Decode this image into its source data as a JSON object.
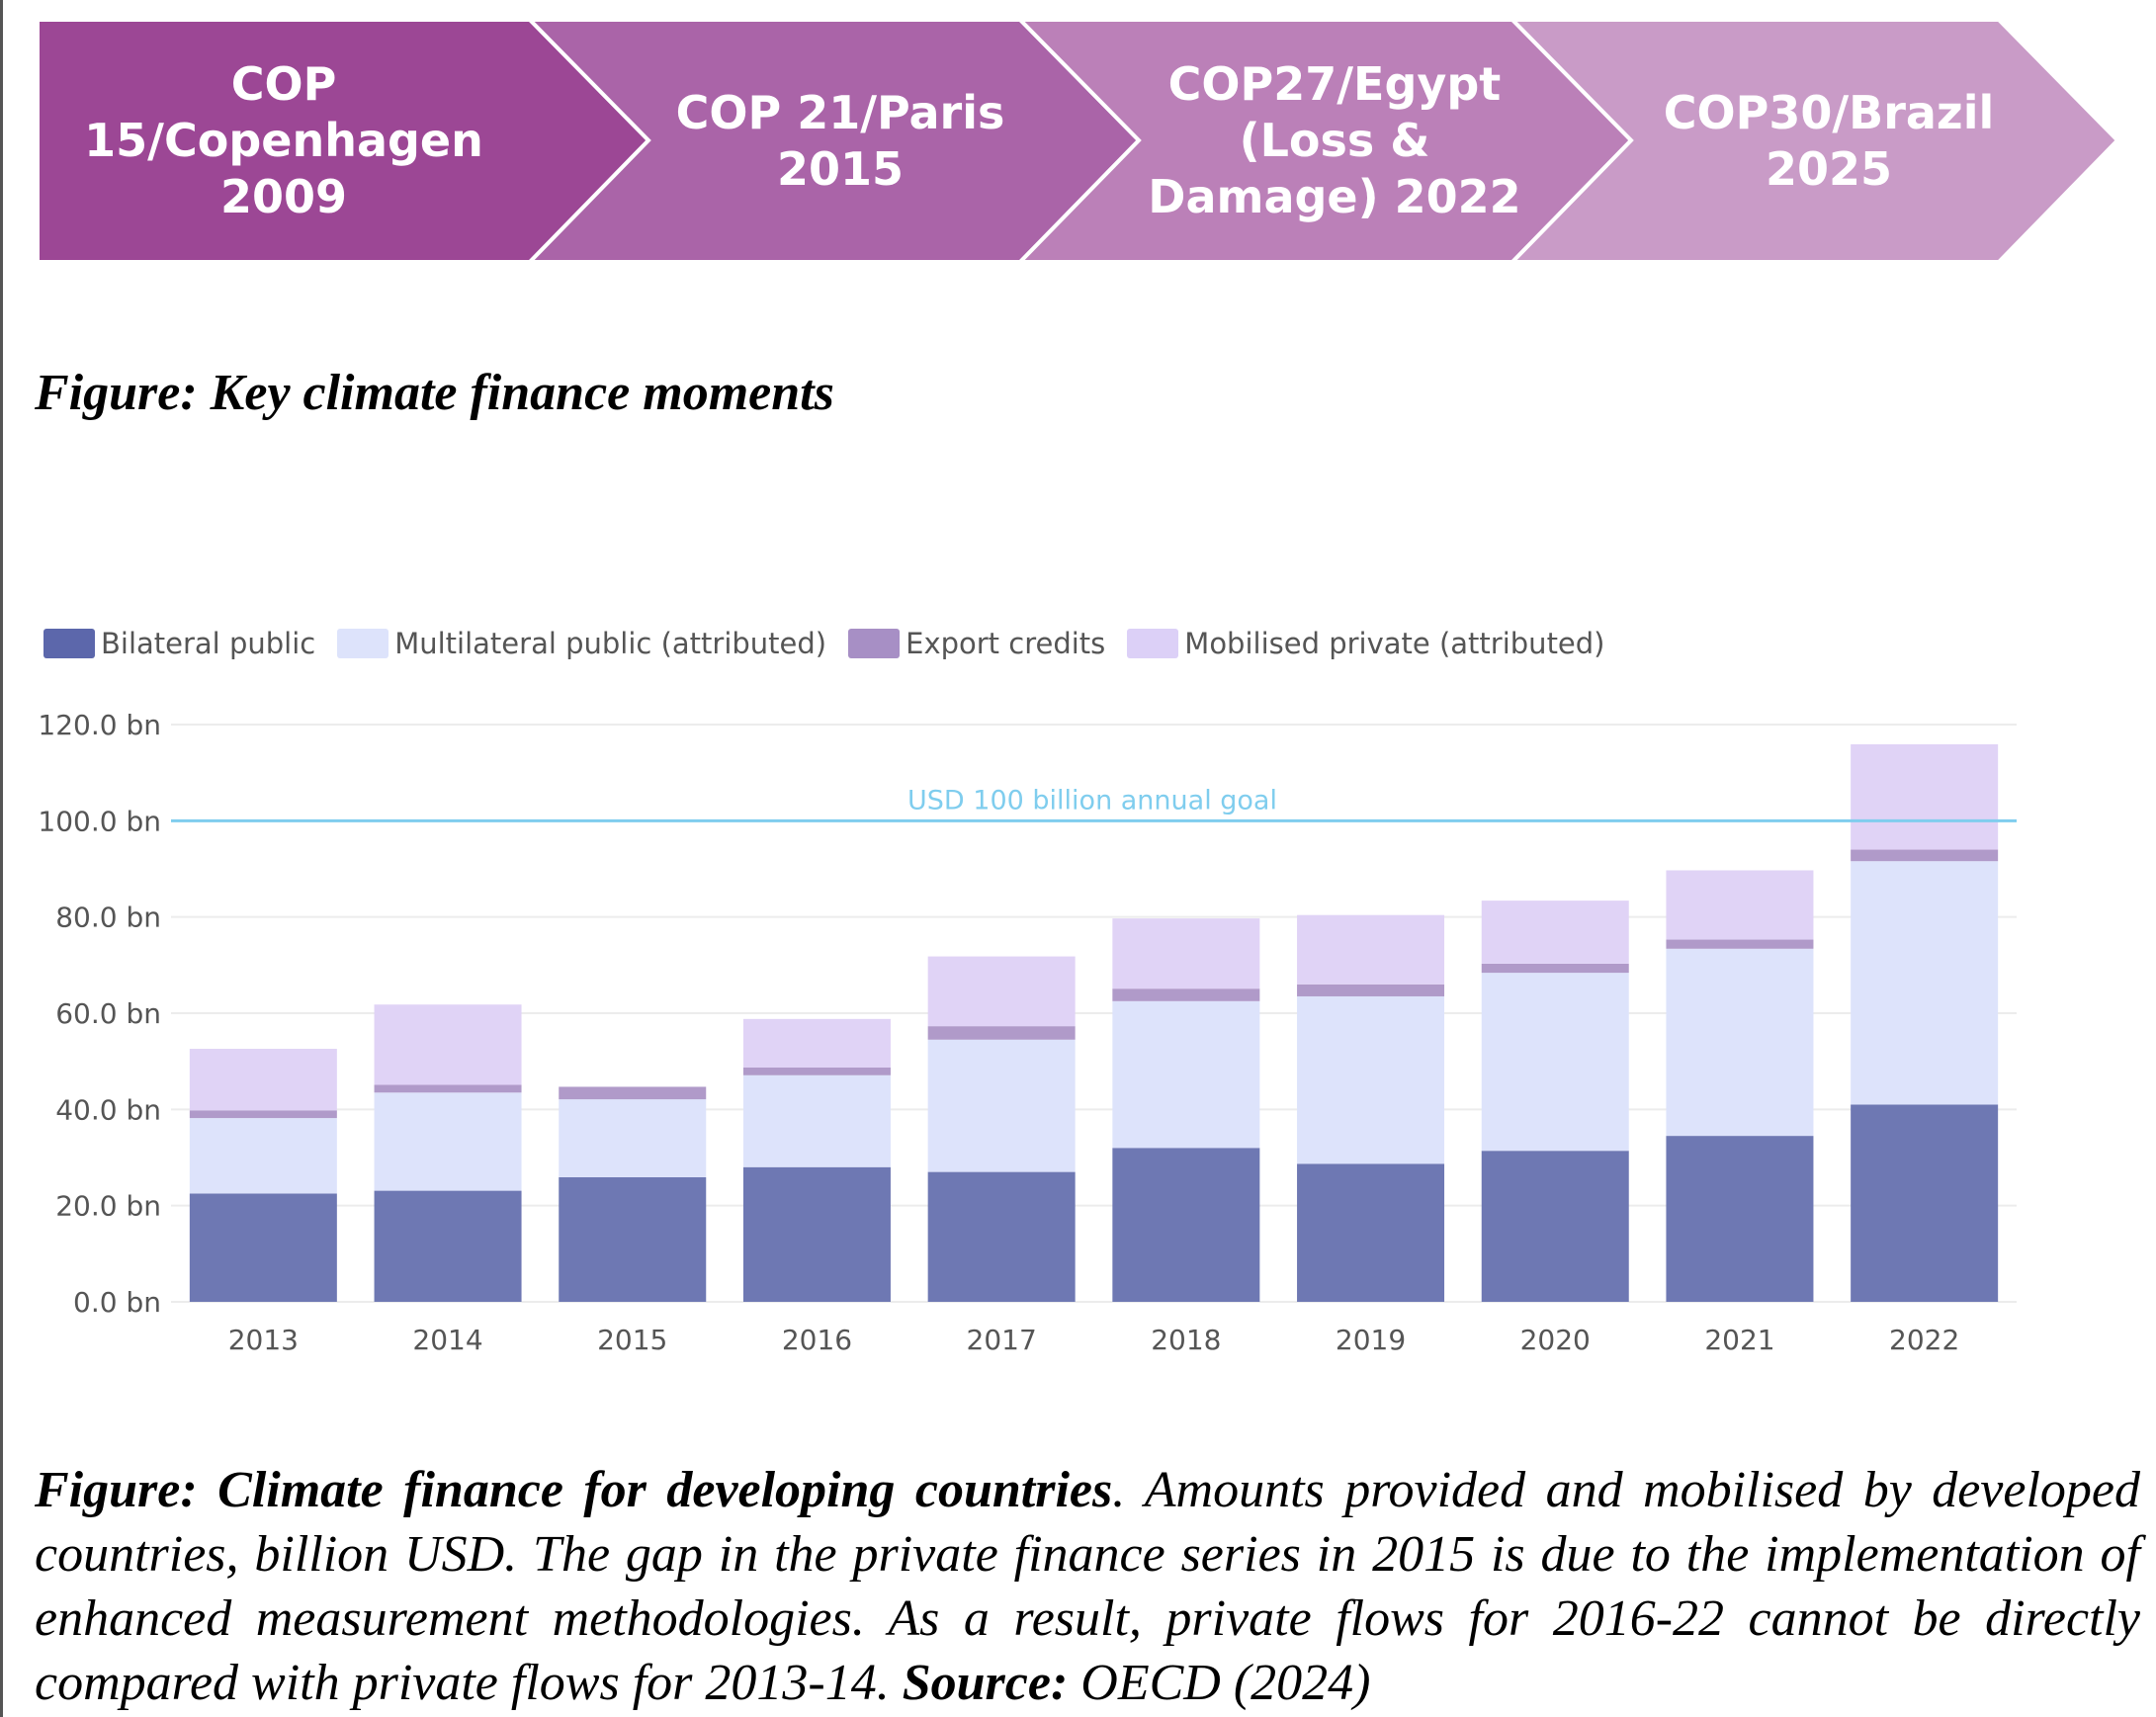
{
  "timeline": {
    "stages": [
      {
        "label_line1": "COP 15/Copenhagen",
        "label_line2": "2009",
        "label_line3": "",
        "color": "#9c4795"
      },
      {
        "label_line1": "COP 21/Paris",
        "label_line2": "2015",
        "label_line3": "",
        "color": "#aa64a8"
      },
      {
        "label_line1": "COP27/Egypt",
        "label_line2": "(Loss &",
        "label_line3": "Damage) 2022",
        "color": "#bb80b8"
      },
      {
        "label_line1": "COP30/Brazil",
        "label_line2": "2025",
        "label_line3": "",
        "color": "#c99bc7"
      }
    ]
  },
  "caption_top": "Figure: Key climate finance moments",
  "chart_data": {
    "type": "bar",
    "stacked": true,
    "categories": [
      "2013",
      "2014",
      "2015",
      "2016",
      "2017",
      "2018",
      "2019",
      "2020",
      "2021",
      "2022"
    ],
    "series": [
      {
        "name": "Bilateral public",
        "color": "#6e78b3",
        "swatch": "#5c67ab",
        "values": [
          22.5,
          23.1,
          25.9,
          28.0,
          27.0,
          32.0,
          28.7,
          31.4,
          34.5,
          41.0
        ]
      },
      {
        "name": "Multilateral public (attributed)",
        "color": "#dde3fb",
        "swatch": "#dde3fb",
        "values": [
          15.7,
          20.4,
          16.2,
          19.1,
          27.5,
          30.5,
          34.8,
          37.0,
          38.9,
          50.6
        ]
      },
      {
        "name": "Export credits",
        "color": "#b09ac9",
        "swatch": "#a78fc5",
        "values": [
          1.6,
          1.6,
          2.6,
          1.6,
          2.8,
          2.6,
          2.5,
          1.9,
          1.9,
          2.4
        ]
      },
      {
        "name": "Mobilised private (attributed)",
        "color": "#e0d3f6",
        "swatch": "#dcd0f7",
        "values": [
          12.8,
          16.7,
          0,
          10.1,
          14.5,
          14.6,
          14.4,
          13.1,
          14.4,
          21.9
        ]
      }
    ],
    "ylim": [
      0,
      120
    ],
    "yticks": [
      0,
      20,
      40,
      60,
      80,
      100,
      120
    ],
    "ytick_labels": [
      "0.0 bn",
      "20.0 bn",
      "40.0 bn",
      "60.0 bn",
      "80.0 bn",
      "100.0 bn",
      "120.0 bn"
    ],
    "reference_line": {
      "value": 100,
      "label": "USD 100 billion annual goal",
      "color": "#7fcdee"
    },
    "grid": true,
    "legend_position": "top-left",
    "gridline_color": "#ececec"
  },
  "caption_bottom": {
    "lead": "Figure:",
    "title": "Climate finance for developing countries",
    "body": ". Amounts provided and mobilised by developed countries, billion USD. The gap in the private finance series in 2015 is due to the implementation of enhanced measurement methodologies. As a result, private flows for 2016-22 cannot be directly compared with private flows for 2013-14. ",
    "source_label": "Source:",
    "source_text": " OECD (2024)"
  }
}
